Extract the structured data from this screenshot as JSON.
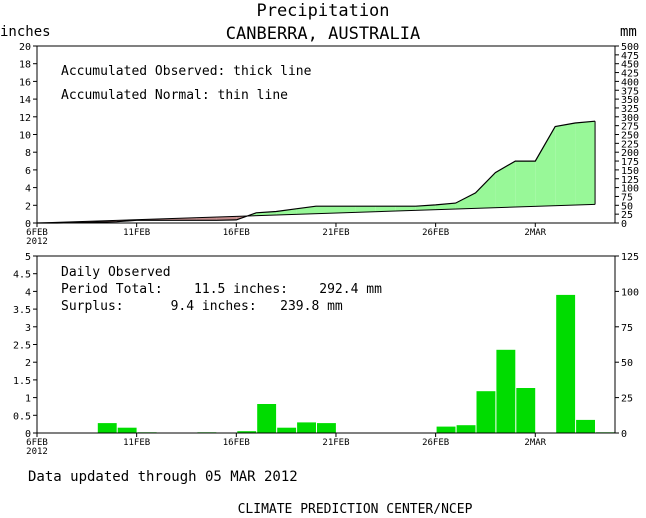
{
  "title": "Precipitation",
  "subtitle": "CANBERRA, AUSTRALIA",
  "footer_update": "Data updated through 05 MAR 2012",
  "footer_source": "CLIMATE PREDICTION CENTER/NCEP",
  "chart_data": [
    {
      "type": "area",
      "panel": "accumulated",
      "ylabel": "inches",
      "y2label": "mm",
      "ylim": [
        0,
        20
      ],
      "y2lim": [
        0,
        500
      ],
      "yticks": [
        "0",
        "2",
        "4",
        "6",
        "8",
        "10",
        "12",
        "14",
        "16",
        "18",
        "20"
      ],
      "y2ticks": [
        "0",
        "25",
        "50",
        "75",
        "100",
        "125",
        "150",
        "175",
        "200",
        "225",
        "250",
        "275",
        "300",
        "325",
        "350",
        "375",
        "400",
        "425",
        "450",
        "475",
        "500"
      ],
      "xlim": [
        0,
        29
      ],
      "xticks": [
        {
          "x": 0,
          "label": "6FEB",
          "sublabel": "2012"
        },
        {
          "x": 5,
          "label": "11FEB"
        },
        {
          "x": 10,
          "label": "16FEB"
        },
        {
          "x": 15,
          "label": "21FEB"
        },
        {
          "x": 20,
          "label": "26FEB"
        },
        {
          "x": 25,
          "label": "2MAR"
        }
      ],
      "annotations": [
        "Accumulated Observed: thick line",
        "Accumulated Normal: thin line"
      ],
      "colors": {
        "surplus": "#98f898",
        "deficit": "#c48c8c"
      },
      "series": [
        {
          "kind": "observed",
          "x": [
            0,
            1,
            2,
            3,
            4,
            5,
            6,
            7,
            8,
            9,
            10,
            11,
            12,
            13,
            14,
            15,
            16,
            17,
            18,
            19,
            20,
            21,
            22,
            23,
            24,
            25,
            26,
            27,
            28
          ],
          "values": [
            0,
            0,
            0.04,
            0.1,
            0.15,
            0.3,
            0.3,
            0.3,
            0.3,
            0.3,
            0.35,
            1.15,
            1.3,
            1.6,
            1.9,
            1.9,
            1.9,
            1.9,
            1.9,
            1.9,
            2.05,
            2.25,
            3.4,
            5.7,
            7.0,
            7.0,
            10.9,
            11.3,
            11.5
          ]
        },
        {
          "kind": "normal",
          "x": [
            0,
            28
          ],
          "values": [
            0,
            2.1
          ]
        }
      ]
    },
    {
      "type": "bar",
      "panel": "daily",
      "ylim": [
        0,
        5
      ],
      "y2lim": [
        0,
        125
      ],
      "yticks": [
        "0",
        "0.5",
        "1",
        "1.5",
        "2",
        "2.5",
        "3",
        "3.5",
        "4",
        "4.5",
        "5"
      ],
      "y2ticks": [
        "0",
        "25",
        "50",
        "75",
        "100",
        "125"
      ],
      "xlim": [
        0,
        29
      ],
      "xticks": [
        {
          "x": 0,
          "label": "6FEB",
          "sublabel": "2012"
        },
        {
          "x": 5,
          "label": "11FEB"
        },
        {
          "x": 10,
          "label": "16FEB"
        },
        {
          "x": 15,
          "label": "21FEB"
        },
        {
          "x": 20,
          "label": "26FEB"
        },
        {
          "x": 25,
          "label": "2MAR"
        }
      ],
      "annotations": [
        "Daily Observed",
        "Period Total:    11.5 inches:    292.4 mm",
        "Surplus:      9.4 inches:   239.8 mm"
      ],
      "bar_color": "#00dc00",
      "x": [
        0,
        1,
        2,
        3,
        4,
        5,
        6,
        7,
        8,
        9,
        10,
        11,
        12,
        13,
        14,
        15,
        16,
        17,
        18,
        19,
        20,
        21,
        22,
        23,
        24,
        25,
        26,
        27,
        28
      ],
      "values": [
        0,
        0,
        0,
        0.28,
        0.15,
        0.02,
        0,
        0,
        0.02,
        0,
        0.05,
        0.82,
        0.15,
        0.3,
        0.28,
        0,
        0,
        0,
        0,
        0,
        0.18,
        0.22,
        1.18,
        2.35,
        1.27,
        0,
        3.9,
        0.37,
        0.02
      ]
    }
  ]
}
